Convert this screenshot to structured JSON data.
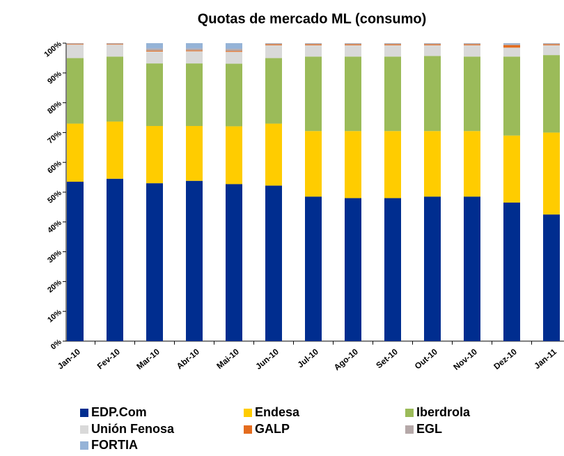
{
  "chart_data": {
    "type": "stacked_bar",
    "title": "Quotas de mercado ML (consumo)",
    "categories": [
      "Jan-10",
      "Fev-10",
      "Mar-10",
      "Abr-10",
      "Mai-10",
      "Jun-10",
      "Jul-10",
      "Ago-10",
      "Set-10",
      "Out-10",
      "Nov-10",
      "Dez-10",
      "Jan-11"
    ],
    "series": [
      {
        "name": "EDP.Com",
        "color": "#002d8f",
        "values": [
          53.5,
          54.5,
          53,
          53.8,
          52.7,
          52.2,
          48.5,
          48,
          48,
          48.5,
          48.5,
          46.5,
          42.5
        ]
      },
      {
        "name": "Endesa",
        "color": "#ffcc00",
        "values": [
          19.5,
          19.2,
          19.2,
          18.4,
          19.4,
          20.8,
          22,
          22.5,
          22.5,
          22,
          22,
          22.5,
          27.5
        ]
      },
      {
        "name": "Iberdrola",
        "color": "#9bbb59",
        "values": [
          22,
          21.8,
          21,
          21,
          21,
          22,
          25,
          25,
          25,
          25.2,
          25,
          26.5,
          26
        ]
      },
      {
        "name": "Unión Fenosa",
        "color": "#d9d9d9",
        "values": [
          4.5,
          4,
          4,
          4.1,
          4,
          4.3,
          3.8,
          3.8,
          3.8,
          3.6,
          3.8,
          3,
          3.3
        ]
      },
      {
        "name": "GALP",
        "color": "#e46c1e",
        "values": [
          0.2,
          0.2,
          0.3,
          0.3,
          0.3,
          0.3,
          0.3,
          0.3,
          0.3,
          0.3,
          0.3,
          0.8,
          0.3
        ]
      },
      {
        "name": "EGL",
        "color": "#b5a8a8",
        "values": [
          0.3,
          0.3,
          0.7,
          0.6,
          0.7,
          0.4,
          0.4,
          0.4,
          0.4,
          0.4,
          0.4,
          0.4,
          0.4
        ]
      },
      {
        "name": "FORTIA",
        "color": "#95b3d7",
        "values": [
          0,
          0,
          1.8,
          1.8,
          1.9,
          0,
          0,
          0,
          0,
          0,
          0,
          0.3,
          0
        ]
      }
    ],
    "ylim": [
      0,
      100
    ],
    "yticks": [
      {
        "value": 0,
        "label": "0%"
      },
      {
        "value": 10,
        "label": "10%"
      },
      {
        "value": 20,
        "label": "20%"
      },
      {
        "value": 30,
        "label": "30%"
      },
      {
        "value": 40,
        "label": "40%"
      },
      {
        "value": 50,
        "label": "50%"
      },
      {
        "value": 60,
        "label": "60%"
      },
      {
        "value": 70,
        "label": "70%"
      },
      {
        "value": 80,
        "label": "80%"
      },
      {
        "value": 90,
        "label": "90%"
      },
      {
        "value": 100,
        "label": "100%"
      }
    ],
    "grid": false
  }
}
